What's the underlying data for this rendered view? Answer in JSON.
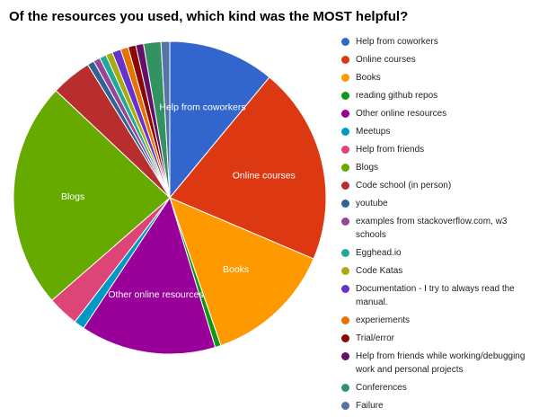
{
  "chart_data": {
    "type": "pie",
    "title": "Of the resources you used, which kind was the MOST helpful?",
    "legend_position": "right",
    "slices": [
      {
        "label": "Help from coworkers",
        "value": 11.0,
        "color": "#3366cc",
        "show_label": true
      },
      {
        "label": "Online courses",
        "value": 20.4,
        "color": "#dc3912",
        "show_label": true
      },
      {
        "label": "Books",
        "value": 13.3,
        "color": "#ff9900",
        "show_label": true
      },
      {
        "label": "reading github repos",
        "value": 0.6,
        "color": "#109618",
        "show_label": false
      },
      {
        "label": "Other online resources",
        "value": 14.0,
        "color": "#990099",
        "show_label": true
      },
      {
        "label": "Meetups",
        "value": 1.1,
        "color": "#0099c6",
        "show_label": false
      },
      {
        "label": "Help from friends",
        "value": 3.2,
        "color": "#dd4477",
        "show_label": false
      },
      {
        "label": "Blogs",
        "value": 23.4,
        "color": "#66aa00",
        "show_label": true
      },
      {
        "label": "Code school (in person)",
        "value": 4.2,
        "color": "#b82e2e",
        "show_label": false
      },
      {
        "label": "youtube",
        "value": 0.7,
        "color": "#316395",
        "show_label": false
      },
      {
        "label": "examples from stackoverflow.com, w3 schools",
        "value": 0.7,
        "color": "#994499",
        "show_label": false
      },
      {
        "label": "Egghead.io",
        "value": 0.7,
        "color": "#22aa99",
        "show_label": false
      },
      {
        "label": "Code Katas",
        "value": 0.7,
        "color": "#aaaa11",
        "show_label": false
      },
      {
        "label": "Documentation - I try to always read the manual.",
        "value": 0.9,
        "color": "#6633cc",
        "show_label": false
      },
      {
        "label": "experiements",
        "value": 0.8,
        "color": "#e67300",
        "show_label": false
      },
      {
        "label": "Trial/error",
        "value": 0.8,
        "color": "#8b0707",
        "show_label": false
      },
      {
        "label": "Help from friends while working/debugging work and personal projects",
        "value": 0.8,
        "color": "#651067",
        "show_label": false
      },
      {
        "label": "Conferences",
        "value": 1.8,
        "color": "#329262",
        "show_label": false
      },
      {
        "label": "Failure",
        "value": 0.9,
        "color": "#5574a6",
        "show_label": false
      }
    ]
  }
}
